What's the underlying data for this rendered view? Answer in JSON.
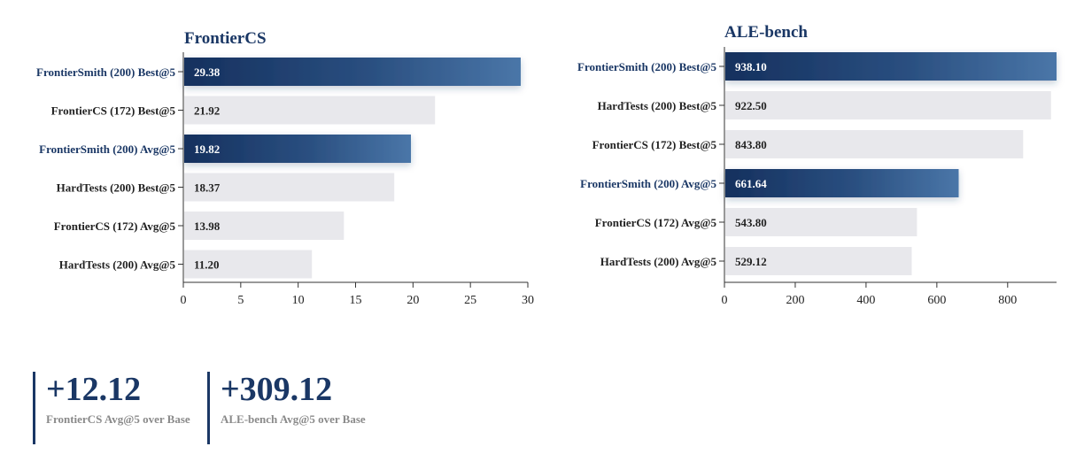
{
  "chart_data": [
    {
      "type": "bar",
      "orientation": "horizontal",
      "title": "FrontierCS",
      "categories": [
        "FrontierSmith (200) Best@5",
        "FrontierCS (172) Best@5",
        "FrontierSmith (200) Avg@5",
        "HardTests (200) Best@5",
        "FrontierCS (172) Avg@5",
        "HardTests (200) Avg@5"
      ],
      "values": [
        29.38,
        21.92,
        19.82,
        18.37,
        13.98,
        11.2
      ],
      "value_labels": [
        "29.38",
        "21.92",
        "19.82",
        "18.37",
        "13.98",
        "11.20"
      ],
      "highlighted": [
        true,
        false,
        true,
        false,
        false,
        false
      ],
      "xlim": [
        0,
        30
      ],
      "xticks": [
        0,
        5,
        10,
        15,
        20,
        25,
        30
      ],
      "grid": false
    },
    {
      "type": "bar",
      "orientation": "horizontal",
      "title": "ALE-bench",
      "categories": [
        "FrontierSmith (200) Best@5",
        "HardTests (200) Best@5",
        "FrontierCS (172) Best@5",
        "FrontierSmith (200) Avg@5",
        "FrontierCS (172) Avg@5",
        "HardTests (200) Avg@5"
      ],
      "values": [
        938.1,
        922.5,
        843.8,
        661.64,
        543.8,
        529.12
      ],
      "value_labels": [
        "938.10",
        "922.50",
        "843.80",
        "661.64",
        "543.80",
        "529.12"
      ],
      "highlighted": [
        true,
        false,
        false,
        true,
        false,
        false
      ],
      "xlim": [
        0,
        938.1
      ],
      "xticks": [
        0,
        200,
        400,
        600,
        800
      ],
      "grid": false
    }
  ],
  "colors": {
    "highlight_dark": "#15305e",
    "highlight_light": "#4a76a8",
    "bar_gray": "#e8e8ec",
    "label_highlight": "#1a3765",
    "label_normal": "#222222",
    "axis": "#333333"
  },
  "stats": [
    {
      "value": "+12.12",
      "label": "FrontierCS Avg@5 over Base"
    },
    {
      "value": "+309.12",
      "label": "ALE-bench Avg@5 over Base"
    }
  ]
}
